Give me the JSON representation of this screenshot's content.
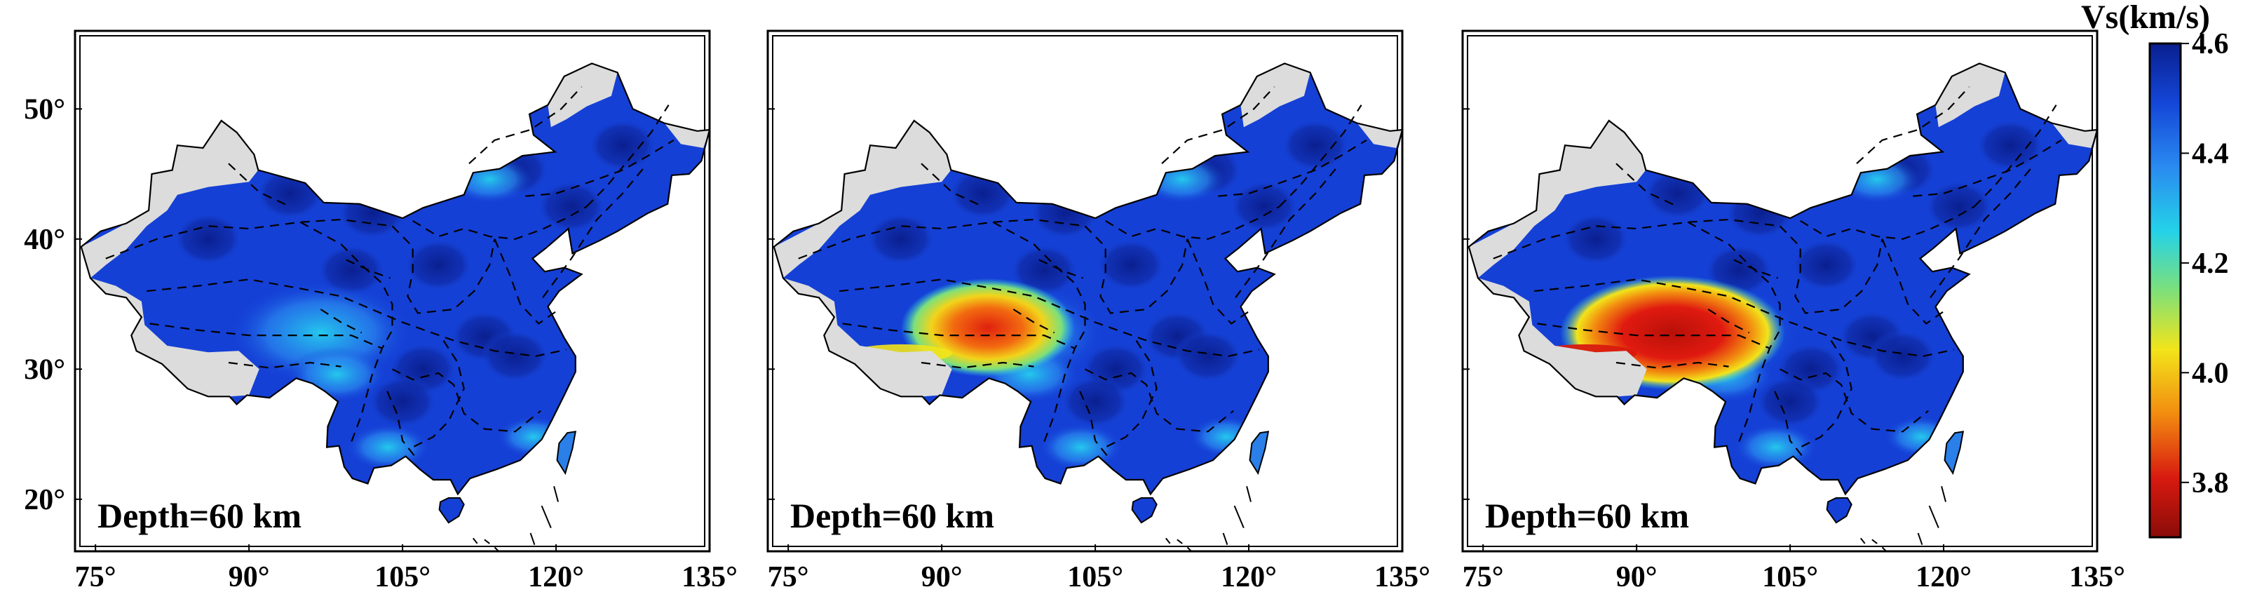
{
  "panels": [
    {
      "depth_label": "Depth=60 km",
      "anomaly": "none"
    },
    {
      "depth_label": "Depth=60 km",
      "anomaly": "moderate"
    },
    {
      "depth_label": "Depth=60 km",
      "anomaly": "strong"
    }
  ],
  "axes": {
    "lon_range": [
      73,
      135
    ],
    "lat_range": [
      16,
      56
    ],
    "x_ticks": [
      "75°",
      "90°",
      "105°",
      "120°",
      "135°"
    ],
    "x_tick_values": [
      75,
      90,
      105,
      120,
      135
    ],
    "y_ticks": [
      "50°",
      "40°",
      "30°",
      "20°"
    ],
    "y_tick_values": [
      50,
      40,
      30,
      20
    ]
  },
  "colorbar": {
    "title": "Vs(km/s)",
    "ticks": [
      "4.6",
      "4.4",
      "4.2",
      "4.0",
      "3.8"
    ],
    "tick_values": [
      4.6,
      4.4,
      4.2,
      4.0,
      3.8
    ],
    "range": [
      3.7,
      4.6
    ],
    "colors": [
      "#0a1f8f",
      "#1446d8",
      "#2a8af0",
      "#24d2e8",
      "#7de07a",
      "#f2e41a",
      "#f28c10",
      "#d81a10",
      "#8a0c08"
    ]
  },
  "colors": {
    "no_data": "#dcdcdc",
    "fast": "#1540d6",
    "slow": "#d81a10"
  }
}
